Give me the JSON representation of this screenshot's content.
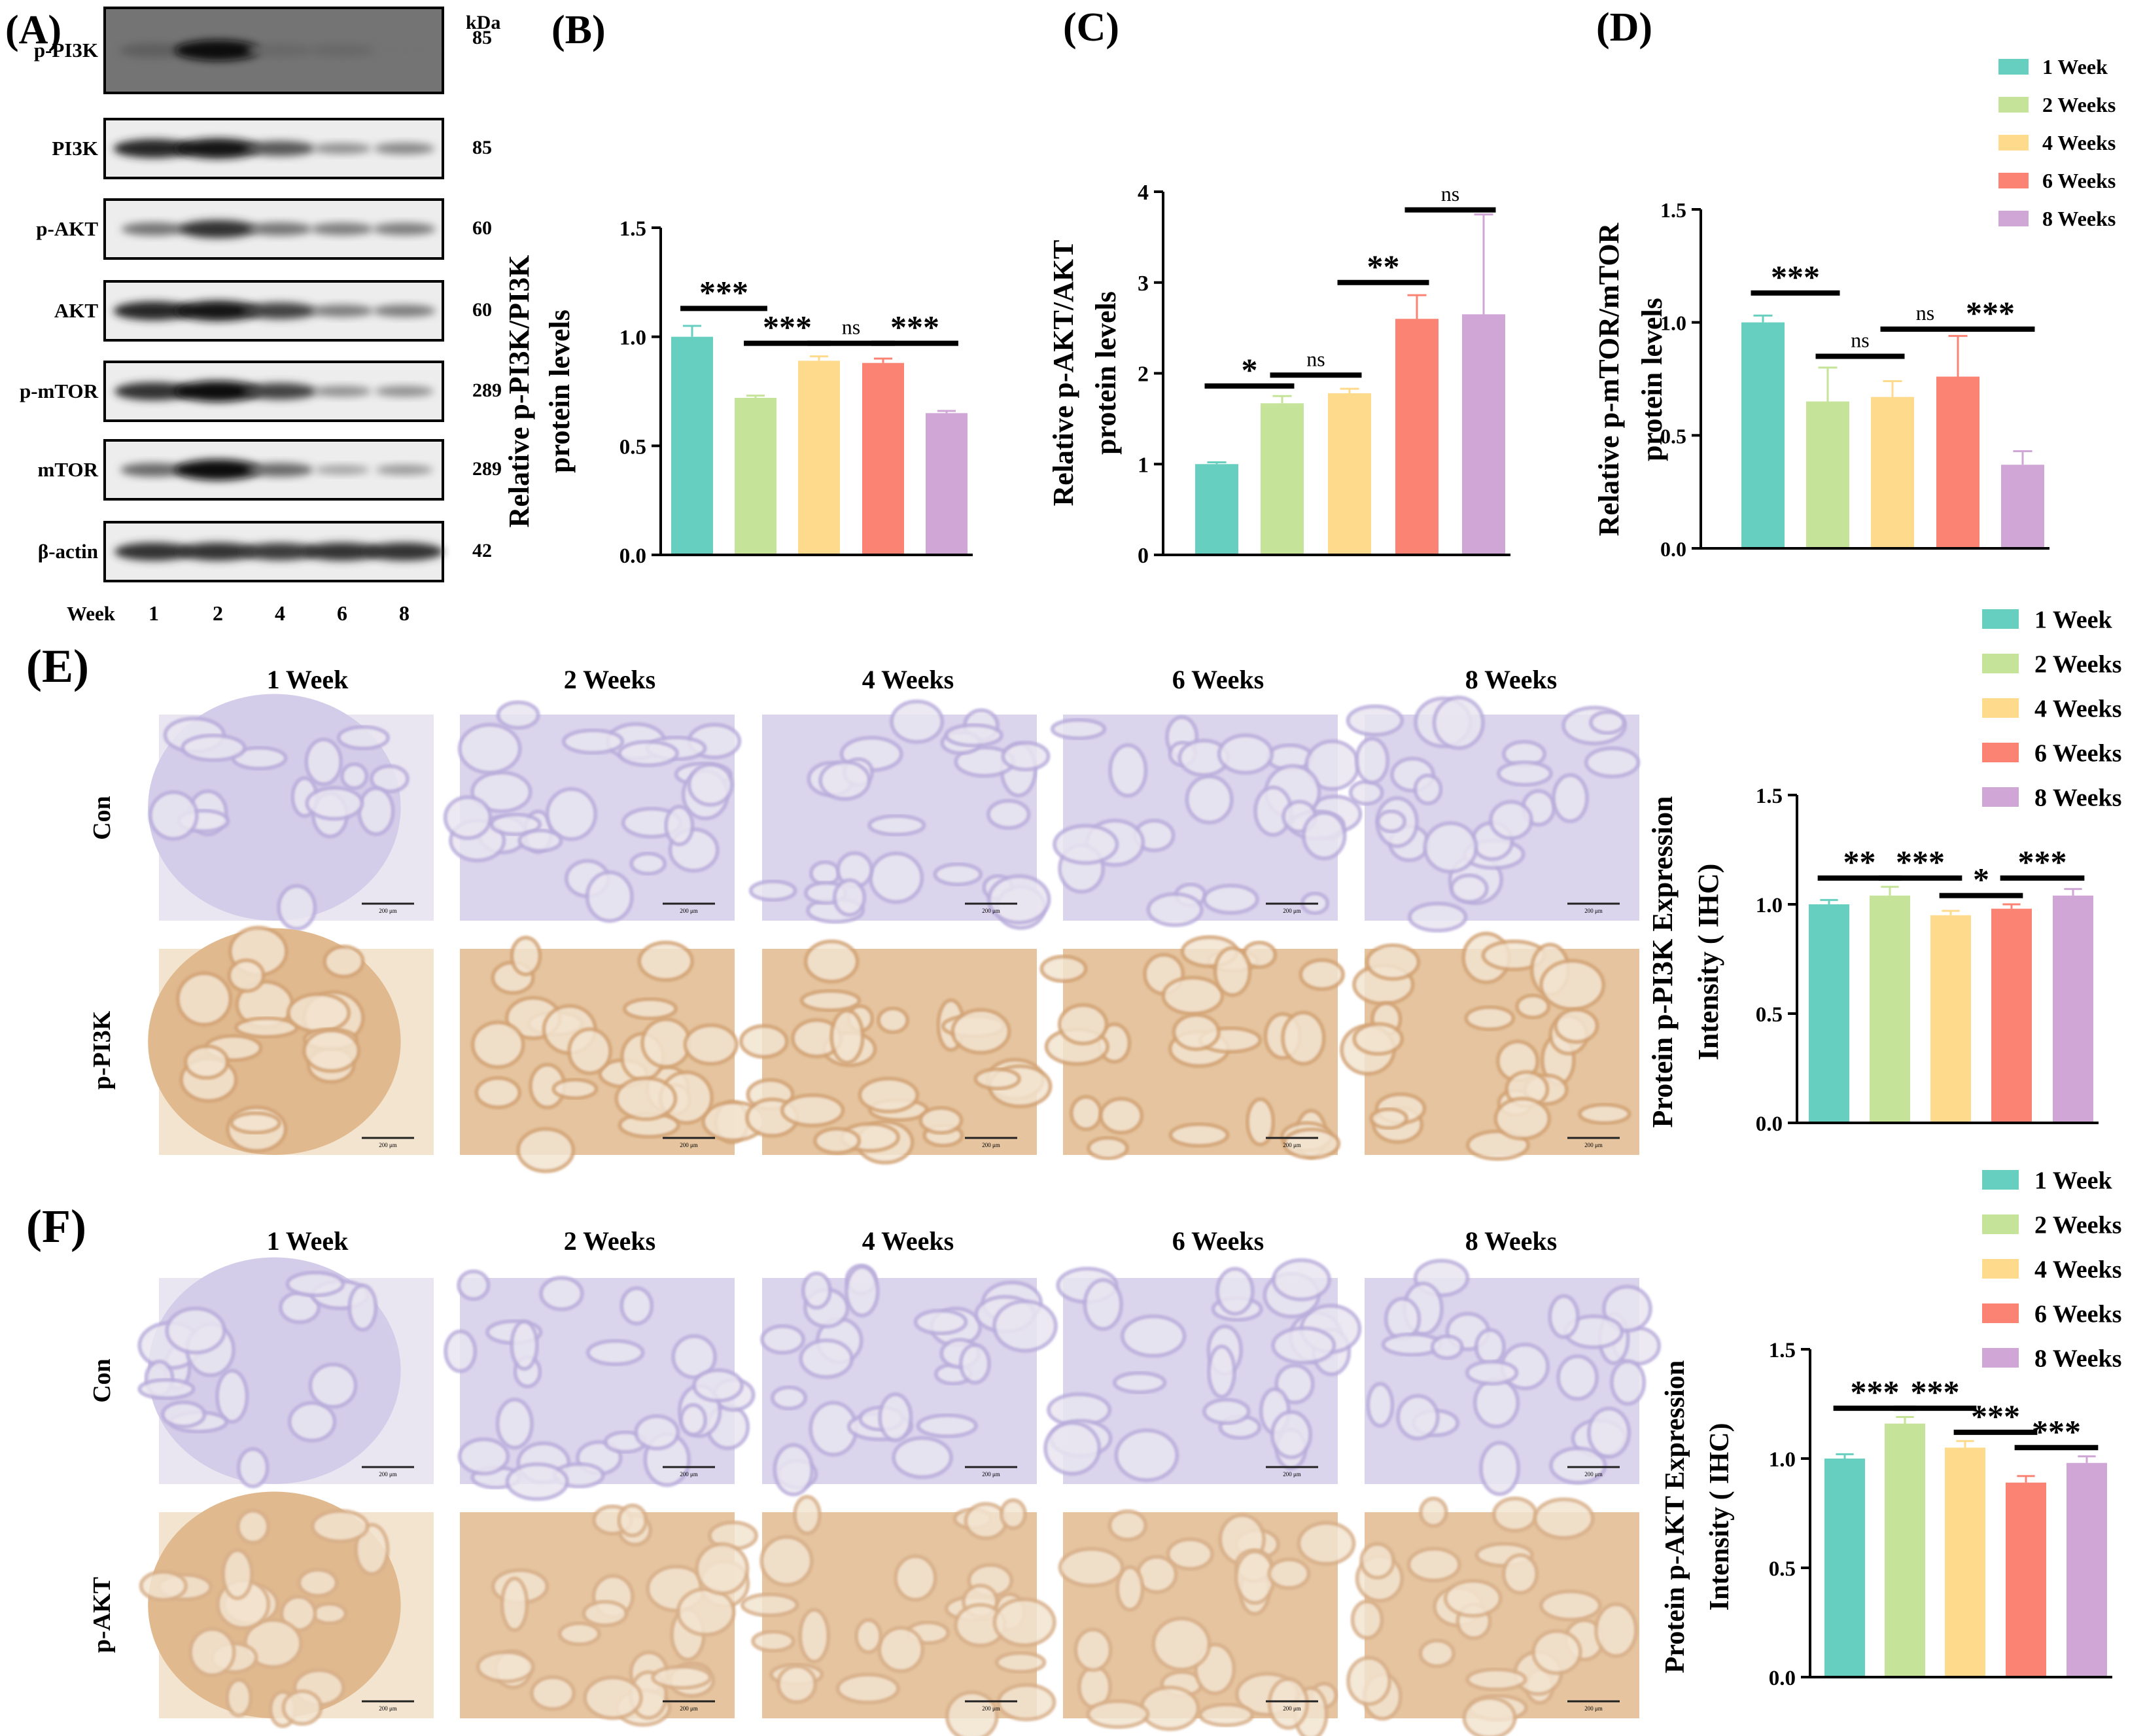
{
  "panel_labels": {
    "a": "(A)",
    "b": "(B)",
    "c": "(C)",
    "d": "(D)",
    "e": "(E)",
    "f": "(F)"
  },
  "colors": {
    "1 Week": "#67CFC0",
    "2 Weeks": "#C6E39A",
    "4 Weeks": "#FDDA8C",
    "6 Weeks": "#FA8374",
    "8 Weeks": "#CFA6D6"
  },
  "legend": [
    "1 Week",
    "2 Weeks",
    "4 Weeks",
    "6 Weeks",
    "8 Weeks"
  ],
  "western_blot": {
    "kda_header": "kDa",
    "x_header": "Week",
    "lanes": [
      "1",
      "2",
      "4",
      "6",
      "8"
    ],
    "rows": [
      {
        "label": "p-PI3K",
        "kda": "85",
        "intensity": [
          0.55,
          1.0,
          0.5,
          0.5,
          0.45
        ]
      },
      {
        "label": "PI3K",
        "kda": "85",
        "intensity": [
          0.85,
          0.95,
          0.6,
          0.3,
          0.35
        ]
      },
      {
        "label": "p-AKT",
        "kda": "60",
        "intensity": [
          0.45,
          0.8,
          0.45,
          0.4,
          0.4
        ]
      },
      {
        "label": "AKT",
        "kda": "60",
        "intensity": [
          0.85,
          0.95,
          0.7,
          0.4,
          0.4
        ]
      },
      {
        "label": "p-mTOR",
        "kda": "289",
        "intensity": [
          0.8,
          1.0,
          0.7,
          0.3,
          0.3
        ]
      },
      {
        "label": "mTOR",
        "kda": "289",
        "intensity": [
          0.5,
          1.0,
          0.5,
          0.2,
          0.25
        ]
      },
      {
        "label": "β-actin",
        "kda": "42",
        "intensity": [
          0.8,
          0.8,
          0.75,
          0.8,
          0.8
        ]
      }
    ]
  },
  "ihc_e": {
    "columns": [
      "1 Week",
      "2 Weeks",
      "4 Weeks",
      "6 Weeks",
      "8 Weeks"
    ],
    "rows": [
      {
        "label": "Con",
        "stain": "#b9addb"
      },
      {
        "label": "p-PI3K",
        "stain": "#d3a476"
      }
    ],
    "scale_bar_label": "200 μm"
  },
  "ihc_f": {
    "columns": [
      "1 Week",
      "2 Weeks",
      "4 Weeks",
      "6 Weeks",
      "8 Weeks"
    ],
    "rows": [
      {
        "label": "Con",
        "stain": "#b9addb"
      },
      {
        "label": "p-AKT",
        "stain": "#d8b08a"
      }
    ],
    "scale_bar_label": "200 μm"
  },
  "chart_data": [
    {
      "id": "B",
      "type": "bar",
      "categories": [
        "1 Week",
        "2 Weeks",
        "4 Weeks",
        "6 Weeks",
        "8 Weeks"
      ],
      "values": [
        1.0,
        0.72,
        0.89,
        0.88,
        0.65
      ],
      "errors": [
        0.05,
        0.01,
        0.02,
        0.02,
        0.01
      ],
      "ylabel": [
        "Relative p-PI3K/PI3K",
        "protein levels"
      ],
      "ylim": [
        0,
        1.5
      ],
      "ticks": [
        {
          "v": 0,
          "label": "0.0"
        },
        {
          "v": 0.5,
          "label": "0.5"
        },
        {
          "v": 1.0,
          "label": "1.0"
        },
        {
          "v": 1.5,
          "label": "1.5"
        }
      ],
      "sig": [
        {
          "from": 0,
          "to": 1,
          "y": 1.13,
          "label": "***"
        },
        {
          "from": 1,
          "to": 2,
          "y": 0.97,
          "label": "***"
        },
        {
          "from": 2,
          "to": 3,
          "y": 0.97,
          "label": "ns"
        },
        {
          "from": 3,
          "to": 4,
          "y": 0.97,
          "label": "***"
        }
      ]
    },
    {
      "id": "C",
      "type": "bar",
      "categories": [
        "1 Week",
        "2 Weeks",
        "4 Weeks",
        "6 Weeks",
        "8 Weeks"
      ],
      "values": [
        1.0,
        1.67,
        1.78,
        2.6,
        2.65
      ],
      "errors": [
        0.02,
        0.08,
        0.05,
        0.26,
        1.1
      ],
      "ylabel": [
        "Relative p-AKT/AKT",
        "protein levels"
      ],
      "ylim": [
        0,
        4
      ],
      "ticks": [
        {
          "v": 0,
          "label": "0"
        },
        {
          "v": 1,
          "label": "1"
        },
        {
          "v": 2,
          "label": "2"
        },
        {
          "v": 3,
          "label": "3"
        },
        {
          "v": 4,
          "label": "4"
        }
      ],
      "sig": [
        {
          "from": 0,
          "to": 1,
          "y": 1.86,
          "label": "*"
        },
        {
          "from": 1,
          "to": 2,
          "y": 1.98,
          "label": "ns"
        },
        {
          "from": 2,
          "to": 3,
          "y": 3.0,
          "label": "**"
        },
        {
          "from": 3,
          "to": 4,
          "y": 3.8,
          "label": "ns"
        }
      ]
    },
    {
      "id": "D",
      "type": "bar",
      "categories": [
        "1 Week",
        "2 Weeks",
        "4 Weeks",
        "6 Weeks",
        "8 Weeks"
      ],
      "values": [
        1.0,
        0.65,
        0.67,
        0.76,
        0.37
      ],
      "errors": [
        0.03,
        0.15,
        0.07,
        0.18,
        0.06
      ],
      "ylabel": [
        "Relative p-mTOR/mTOR",
        "protein levels"
      ],
      "ylim": [
        0,
        1.5
      ],
      "ticks": [
        {
          "v": 0,
          "label": "0.0"
        },
        {
          "v": 0.5,
          "label": "0.5"
        },
        {
          "v": 1.0,
          "label": "1.0"
        },
        {
          "v": 1.5,
          "label": "1.5"
        }
      ],
      "sig": [
        {
          "from": 0,
          "to": 1,
          "y": 1.13,
          "label": "***"
        },
        {
          "from": 1,
          "to": 2,
          "y": 0.85,
          "label": "ns"
        },
        {
          "from": 2,
          "to": 3,
          "y": 0.97,
          "label": "ns"
        },
        {
          "from": 3,
          "to": 4,
          "y": 0.97,
          "label": "***"
        }
      ]
    },
    {
      "id": "E",
      "type": "bar",
      "categories": [
        "1 Week",
        "2 Weeks",
        "4 Weeks",
        "6 Weeks",
        "8 Weeks"
      ],
      "values": [
        1.0,
        1.04,
        0.95,
        0.98,
        1.04
      ],
      "errors": [
        0.02,
        0.04,
        0.02,
        0.02,
        0.03
      ],
      "ylabel": [
        "Protein p-PI3K Expression",
        "Intensity ( IHC)"
      ],
      "ylim": [
        0,
        1.5
      ],
      "ticks": [
        {
          "v": 0,
          "label": "0.0"
        },
        {
          "v": 0.5,
          "label": "0.5"
        },
        {
          "v": 1.0,
          "label": "1.0"
        },
        {
          "v": 1.5,
          "label": "1.5"
        }
      ],
      "sig": [
        {
          "from": 0,
          "to": 1,
          "y": 1.12,
          "label": "**"
        },
        {
          "from": 1,
          "to": 2,
          "y": 1.12,
          "label": "***"
        },
        {
          "from": 2,
          "to": 3,
          "y": 1.04,
          "label": "*"
        },
        {
          "from": 3,
          "to": 4,
          "y": 1.12,
          "label": "***"
        }
      ]
    },
    {
      "id": "F",
      "type": "bar",
      "categories": [
        "1 Week",
        "2 Weeks",
        "4 Weeks",
        "6 Weeks",
        "8 Weeks"
      ],
      "values": [
        1.0,
        1.16,
        1.05,
        0.89,
        0.98
      ],
      "errors": [
        0.02,
        0.03,
        0.03,
        0.03,
        0.03
      ],
      "ylabel": [
        "Protein p-AKT Expression",
        "Intensity ( IHC)"
      ],
      "ylim": [
        0,
        1.5
      ],
      "ticks": [
        {
          "v": 0,
          "label": "0.0"
        },
        {
          "v": 0.5,
          "label": "0.5"
        },
        {
          "v": 1.0,
          "label": "1.0"
        },
        {
          "v": 1.5,
          "label": "1.5"
        }
      ],
      "sig": [
        {
          "from": 0,
          "to": 1,
          "y": 1.23,
          "label": "***"
        },
        {
          "from": 1,
          "to": 2,
          "y": 1.23,
          "label": "***"
        },
        {
          "from": 2,
          "to": 3,
          "y": 1.12,
          "label": "***"
        },
        {
          "from": 3,
          "to": 4,
          "y": 1.05,
          "label": "***"
        }
      ]
    }
  ]
}
